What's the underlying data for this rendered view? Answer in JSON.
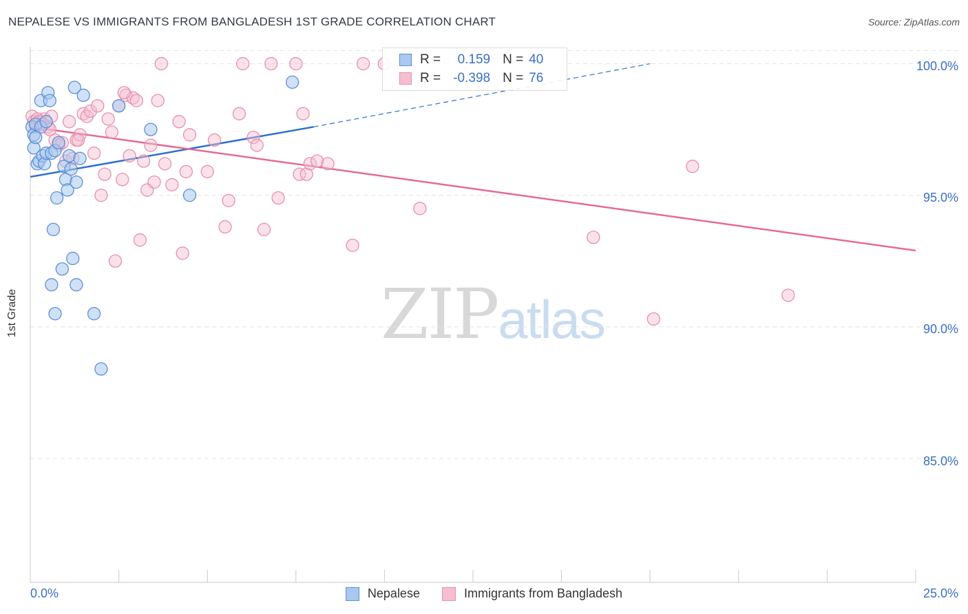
{
  "header": {
    "title": "NEPALESE VS IMMIGRANTS FROM BANGLADESH 1ST GRADE CORRELATION CHART",
    "source": "Source: ZipAtlas.com"
  },
  "watermark": {
    "zip": "ZIP",
    "atlas": "atlas"
  },
  "colors": {
    "blue_fill": "#a9c8ef",
    "blue_stroke": "#5b8fd6",
    "blue_line": "#2c6fd0",
    "pink_fill": "#f5bfd0",
    "pink_stroke": "#e78fae",
    "pink_line": "#e46a97",
    "grid": "#e3e3e3",
    "axis_label": "#3a6fc4"
  },
  "legend_stats": [
    {
      "r_label": "R =",
      "r_value": "0.159",
      "n_label": "N =",
      "n_value": "40"
    },
    {
      "r_label": "R =",
      "r_value": "-0.398",
      "n_label": "N =",
      "n_value": "76"
    }
  ],
  "chart_data": {
    "type": "scatter",
    "title": "NEPALESE VS IMMIGRANTS FROM BANGLADESH 1ST GRADE CORRELATION CHART",
    "xlabel": "",
    "ylabel": "1st Grade",
    "xlim": [
      0,
      25
    ],
    "ylim": [
      80.5,
      100.8
    ],
    "x_tick_labels": [
      "0.0%",
      "25.0%"
    ],
    "y_ticks": [
      85,
      90,
      95,
      100
    ],
    "y_tick_labels": [
      "85.0%",
      "90.0%",
      "95.0%",
      "100.0%"
    ],
    "grid": true,
    "legend": "bottom-center",
    "series": [
      {
        "name": "Nepalese",
        "r": 0.159,
        "n": 40,
        "trend": {
          "x": [
            0,
            8.0
          ],
          "y": [
            95.7,
            97.6
          ],
          "dashed_extension": {
            "x": [
              8.0,
              17.5
            ],
            "y": [
              97.6,
              100.0
            ]
          }
        },
        "points": [
          [
            0.05,
            97.6
          ],
          [
            0.1,
            97.3
          ],
          [
            0.1,
            96.8
          ],
          [
            0.15,
            97.2
          ],
          [
            0.2,
            96.2
          ],
          [
            0.25,
            96.3
          ],
          [
            0.3,
            98.6
          ],
          [
            0.35,
            96.5
          ],
          [
            0.4,
            96.2
          ],
          [
            0.45,
            96.6
          ],
          [
            0.5,
            98.9
          ],
          [
            0.55,
            98.6
          ],
          [
            0.6,
            96.6
          ],
          [
            0.65,
            93.7
          ],
          [
            0.7,
            96.7
          ],
          [
            0.75,
            94.9
          ],
          [
            0.8,
            97.0
          ],
          [
            0.9,
            92.2
          ],
          [
            0.95,
            96.1
          ],
          [
            1.0,
            95.6
          ],
          [
            1.05,
            95.2
          ],
          [
            1.1,
            96.5
          ],
          [
            1.15,
            96.0
          ],
          [
            1.2,
            92.6
          ],
          [
            1.25,
            99.1
          ],
          [
            1.3,
            95.5
          ],
          [
            1.4,
            96.4
          ],
          [
            1.5,
            98.8
          ],
          [
            0.6,
            91.6
          ],
          [
            1.3,
            91.6
          ],
          [
            0.7,
            90.5
          ],
          [
            1.8,
            90.5
          ],
          [
            2.0,
            88.4
          ],
          [
            2.5,
            98.4
          ],
          [
            3.4,
            97.5
          ],
          [
            4.5,
            95.0
          ],
          [
            7.4,
            99.3
          ],
          [
            0.15,
            97.7
          ],
          [
            0.3,
            97.6
          ],
          [
            0.45,
            97.8
          ]
        ]
      },
      {
        "name": "Immigrants from Bangladesh",
        "r": -0.398,
        "n": 76,
        "trend": {
          "x": [
            0,
            25.0
          ],
          "y": [
            97.6,
            92.9
          ]
        },
        "points": [
          [
            0.05,
            98.0
          ],
          [
            0.1,
            97.8
          ],
          [
            0.15,
            97.6
          ],
          [
            0.2,
            97.9
          ],
          [
            0.3,
            97.7
          ],
          [
            0.4,
            97.9
          ],
          [
            0.5,
            97.6
          ],
          [
            0.6,
            98.0
          ],
          [
            0.7,
            97.1
          ],
          [
            0.8,
            96.9
          ],
          [
            0.9,
            97.0
          ],
          [
            1.0,
            96.3
          ],
          [
            1.1,
            97.8
          ],
          [
            1.2,
            96.4
          ],
          [
            1.3,
            97.1
          ],
          [
            1.4,
            97.3
          ],
          [
            1.5,
            98.1
          ],
          [
            1.6,
            98.0
          ],
          [
            1.7,
            98.2
          ],
          [
            1.8,
            96.6
          ],
          [
            1.9,
            98.4
          ],
          [
            2.0,
            95.0
          ],
          [
            2.1,
            95.8
          ],
          [
            2.2,
            97.9
          ],
          [
            2.3,
            97.4
          ],
          [
            2.4,
            92.5
          ],
          [
            2.5,
            98.4
          ],
          [
            2.6,
            95.6
          ],
          [
            2.7,
            98.8
          ],
          [
            2.8,
            96.5
          ],
          [
            2.9,
            98.7
          ],
          [
            3.0,
            98.6
          ],
          [
            3.1,
            93.3
          ],
          [
            3.2,
            96.3
          ],
          [
            3.3,
            95.2
          ],
          [
            3.4,
            96.9
          ],
          [
            3.5,
            95.5
          ],
          [
            3.6,
            98.6
          ],
          [
            3.7,
            100.0
          ],
          [
            3.8,
            96.2
          ],
          [
            4.0,
            95.4
          ],
          [
            4.2,
            97.8
          ],
          [
            4.3,
            92.8
          ],
          [
            4.4,
            95.9
          ],
          [
            4.5,
            97.3
          ],
          [
            5.0,
            95.9
          ],
          [
            5.2,
            97.1
          ],
          [
            5.5,
            93.8
          ],
          [
            5.6,
            94.8
          ],
          [
            5.9,
            98.1
          ],
          [
            6.0,
            100.0
          ],
          [
            6.3,
            97.2
          ],
          [
            6.4,
            96.9
          ],
          [
            6.6,
            93.7
          ],
          [
            6.8,
            100.0
          ],
          [
            7.0,
            94.9
          ],
          [
            7.5,
            100.0
          ],
          [
            7.6,
            95.8
          ],
          [
            7.7,
            98.1
          ],
          [
            7.8,
            95.8
          ],
          [
            7.9,
            96.2
          ],
          [
            8.1,
            96.3
          ],
          [
            8.4,
            96.2
          ],
          [
            9.1,
            93.1
          ],
          [
            9.4,
            100.0
          ],
          [
            10.0,
            100.0
          ],
          [
            11.0,
            94.5
          ],
          [
            15.9,
            93.4
          ],
          [
            17.6,
            90.3
          ],
          [
            18.7,
            96.1
          ],
          [
            21.4,
            91.2
          ],
          [
            0.25,
            97.8
          ],
          [
            0.35,
            97.7
          ],
          [
            0.55,
            97.5
          ],
          [
            1.35,
            97.1
          ],
          [
            2.65,
            98.9
          ]
        ]
      }
    ]
  }
}
